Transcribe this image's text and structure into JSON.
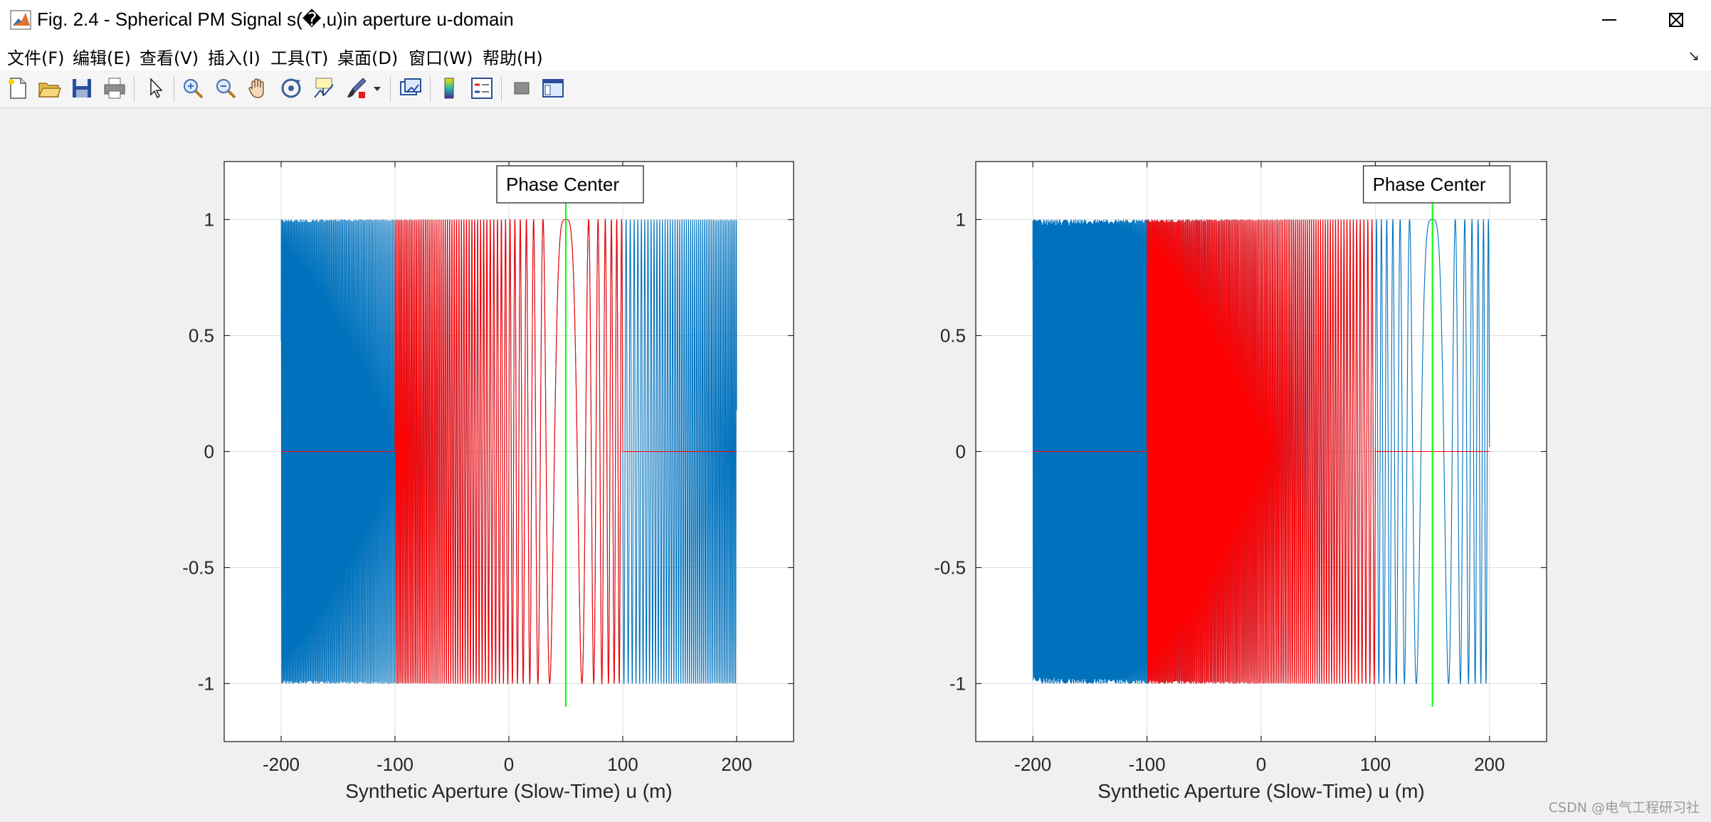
{
  "window": {
    "title": "Fig. 2.4 - Spherical PM Signal s(�,u)in aperture u-domain",
    "minimize_icon": "minimize-icon",
    "maximize_icon": "maximize-icon",
    "close_icon": "close-icon"
  },
  "menu": {
    "items": [
      "文件(F)",
      "编辑(E)",
      "查看(V)",
      "插入(I)",
      "工具(T)",
      "桌面(D)",
      "窗口(W)",
      "帮助(H)"
    ]
  },
  "toolbar": {
    "icons": [
      "new-figure-icon",
      "open-file-icon",
      "save-icon",
      "print-icon",
      "pointer-icon",
      "zoom-in-icon",
      "zoom-out-icon",
      "pan-icon",
      "rotate-3d-icon",
      "data-cursor-icon",
      "brush-icon",
      "brush-dropdown-icon",
      "link-plot-icon",
      "colorbar-icon",
      "legend-icon",
      "hide-plot-tools-icon",
      "show-plot-tools-icon"
    ]
  },
  "colors": {
    "signal": "#0072bd",
    "windowed": "#ff0000",
    "phase_center": "#00ff00"
  },
  "chart_data": [
    {
      "type": "line",
      "xlabel": "Synthetic Aperture (Slow-Time) u (m)",
      "ylabel": "",
      "xlim": [
        -250,
        250
      ],
      "ylim": [
        -1.25,
        1.25
      ],
      "xticks": [
        -200,
        -100,
        0,
        100,
        200
      ],
      "yticks": [
        1,
        0.5,
        0,
        -0.5,
        -1
      ],
      "xtick_labels": [
        "-200",
        "-100",
        "0",
        "100",
        "200"
      ],
      "ytick_labels": [
        "1",
        "0.5",
        "0",
        "-0.5",
        "-1"
      ],
      "grid": true,
      "annotation": "Phase Center",
      "phase_center": {
        "u": 50,
        "y_range": [
          -1.1,
          1.1
        ]
      },
      "series": [
        {
          "role": "full-aperture-signal",
          "color": "#0072bd",
          "u_range": [
            -200,
            200
          ],
          "chirp_center": 50,
          "chirp_rate": 0.0157
        },
        {
          "role": "windowed-signal",
          "color": "#ff0000",
          "u_range": [
            -200,
            200
          ],
          "window": [
            -100,
            100
          ],
          "chirp_center": 50,
          "chirp_rate": 0.0157
        }
      ]
    },
    {
      "type": "line",
      "xlabel": "Synthetic Aperture (Slow-Time) u (m)",
      "ylabel": "",
      "xlim": [
        -250,
        250
      ],
      "ylim": [
        -1.25,
        1.25
      ],
      "xticks": [
        -200,
        -100,
        0,
        100,
        200
      ],
      "yticks": [
        1,
        0.5,
        0,
        -0.5,
        -1
      ],
      "xtick_labels": [
        "-200",
        "-100",
        "0",
        "100",
        "200"
      ],
      "ytick_labels": [
        "1",
        "0.5",
        "0",
        "-0.5",
        "-1"
      ],
      "grid": true,
      "annotation": "Phase Center",
      "phase_center": {
        "u": 150,
        "y_range": [
          -1.1,
          1.1
        ]
      },
      "series": [
        {
          "role": "full-aperture-signal",
          "color": "#0072bd",
          "u_range": [
            -200,
            200
          ],
          "chirp_center": 150,
          "chirp_rate": 0.0157
        },
        {
          "role": "windowed-signal",
          "color": "#ff0000",
          "u_range": [
            -200,
            200
          ],
          "window": [
            -100,
            100
          ],
          "chirp_center": 150,
          "chirp_rate": 0.0157
        }
      ]
    }
  ],
  "watermark": "CSDN @电气工程研习社"
}
